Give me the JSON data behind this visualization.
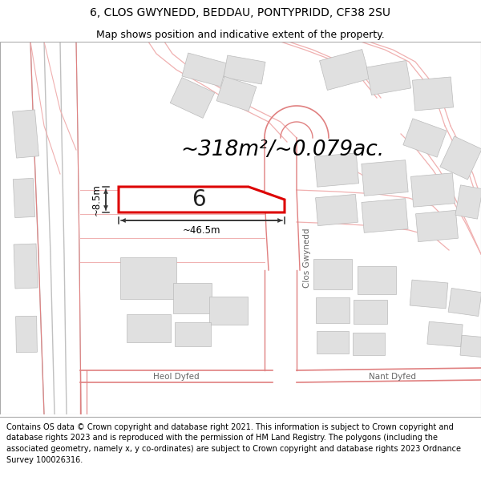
{
  "title_line1": "6, CLOS GWYNEDD, BEDDAU, PONTYPRIDD, CF38 2SU",
  "title_line2": "Map shows position and indicative extent of the property.",
  "area_text": "~318m²/~0.079ac.",
  "dim_width": "~46.5m",
  "dim_height": "~8.5m",
  "plot_label": "6",
  "street_vertical": "Clos Gwynedd",
  "street_h1": "Heol Dyfed",
  "street_h2": "Nant Dyfed",
  "footer": "Contains OS data © Crown copyright and database right 2021. This information is subject to Crown copyright and database rights 2023 and is reproduced with the permission of HM Land Registry. The polygons (including the associated geometry, namely x, y co-ordinates) are subject to Crown copyright and database rights 2023 Ordnance Survey 100026316.",
  "map_bg": "#ffffff",
  "map_border": "#cccccc",
  "plot_fill": "#ffffff",
  "plot_edge": "#dd0000",
  "road_color": "#f0b0b0",
  "road_color2": "#e08080",
  "gray_road": "#c0c0c0",
  "building_fill": "#e0e0e0",
  "building_edge": "#bbbbbb",
  "title_fontsize": 10,
  "subtitle_fontsize": 9,
  "area_fontsize": 19,
  "dim_fontsize": 8.5,
  "footer_fontsize": 7.0,
  "dim_arrow_color": "#333333"
}
